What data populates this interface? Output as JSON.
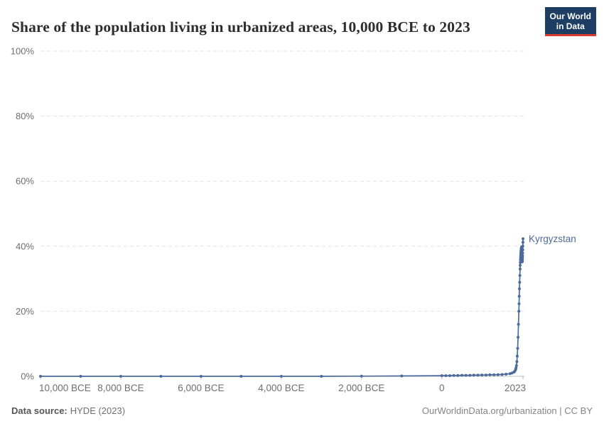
{
  "header": {
    "title": "Share of the population living in urbanized areas, 10,000 BCE to 2023",
    "logo": {
      "line1": "Our World",
      "line2": "in Data",
      "bg_color": "#1d3d63",
      "accent_color": "#d93a2d"
    }
  },
  "chart_data": {
    "type": "line",
    "title": "Share of the population living in urbanized areas, 10,000 BCE to 2023",
    "entity": "Kyrgyzstan",
    "line_color": "#4c6a9c",
    "xlim": [
      -10000,
      2023
    ],
    "ylim": [
      0,
      100
    ],
    "grid": "dashed horizontal",
    "legend_position": "end-of-line label",
    "colors": {
      "grid": "#e2e2e2",
      "axis": "#bdbdbd",
      "tick_label": "#6e6e6e"
    },
    "y_ticks": [
      {
        "label": "0%",
        "value": 0
      },
      {
        "label": "20%",
        "value": 20
      },
      {
        "label": "40%",
        "value": 40
      },
      {
        "label": "60%",
        "value": 60
      },
      {
        "label": "80%",
        "value": 80
      },
      {
        "label": "100%",
        "value": 100
      }
    ],
    "x_ticks": [
      {
        "label": "10,000 BCE",
        "year": -10000
      },
      {
        "label": "8,000 BCE",
        "year": -8000
      },
      {
        "label": "6,000 BCE",
        "year": -6000
      },
      {
        "label": "4,000 BCE",
        "year": -4000
      },
      {
        "label": "2,000 BCE",
        "year": -2000
      },
      {
        "label": "0",
        "year": 0
      },
      {
        "label": "2023",
        "year": 2023
      }
    ],
    "points": [
      [
        -10000,
        0
      ],
      [
        -9000,
        0
      ],
      [
        -8000,
        0
      ],
      [
        -7000,
        0
      ],
      [
        -6000,
        0
      ],
      [
        -5000,
        0
      ],
      [
        -4000,
        0
      ],
      [
        -3000,
        0
      ],
      [
        -2000,
        0.05
      ],
      [
        -1000,
        0.1
      ],
      [
        0,
        0.2
      ],
      [
        100,
        0.2
      ],
      [
        200,
        0.2
      ],
      [
        300,
        0.25
      ],
      [
        400,
        0.25
      ],
      [
        500,
        0.3
      ],
      [
        600,
        0.3
      ],
      [
        700,
        0.3
      ],
      [
        800,
        0.35
      ],
      [
        900,
        0.35
      ],
      [
        1000,
        0.4
      ],
      [
        1100,
        0.4
      ],
      [
        1200,
        0.45
      ],
      [
        1300,
        0.45
      ],
      [
        1400,
        0.5
      ],
      [
        1500,
        0.55
      ],
      [
        1600,
        0.65
      ],
      [
        1700,
        0.8
      ],
      [
        1750,
        1
      ],
      [
        1800,
        1.3
      ],
      [
        1820,
        1.6
      ],
      [
        1840,
        2.1
      ],
      [
        1850,
        2.6
      ],
      [
        1860,
        3.3
      ],
      [
        1870,
        4.5
      ],
      [
        1880,
        6.2
      ],
      [
        1890,
        8.6
      ],
      [
        1900,
        12
      ],
      [
        1910,
        16
      ],
      [
        1920,
        20
      ],
      [
        1925,
        22.3
      ],
      [
        1930,
        24.6
      ],
      [
        1935,
        26.9
      ],
      [
        1940,
        28.9
      ],
      [
        1945,
        31
      ],
      [
        1950,
        33
      ],
      [
        1953,
        34.1
      ],
      [
        1956,
        35
      ],
      [
        1959,
        35.8
      ],
      [
        1962,
        36.4
      ],
      [
        1965,
        37
      ],
      [
        1968,
        37.6
      ],
      [
        1971,
        38.1
      ],
      [
        1974,
        38.5
      ],
      [
        1977,
        38.9
      ],
      [
        1980,
        39.2
      ],
      [
        1983,
        39.4
      ],
      [
        1986,
        39.6
      ],
      [
        1989,
        39.8
      ],
      [
        1991,
        39.2
      ],
      [
        1993,
        38.3
      ],
      [
        1995,
        37.4
      ],
      [
        1997,
        36.6
      ],
      [
        1999,
        36
      ],
      [
        2001,
        35.5
      ],
      [
        2003,
        35.2
      ],
      [
        2005,
        35.3
      ],
      [
        2007,
        35.6
      ],
      [
        2009,
        36
      ],
      [
        2011,
        36.5
      ],
      [
        2013,
        37.1
      ],
      [
        2015,
        37.9
      ],
      [
        2017,
        38.9
      ],
      [
        2019,
        40
      ],
      [
        2021,
        41.2
      ],
      [
        2023,
        42.3
      ]
    ]
  },
  "footer": {
    "datasource_label": "Data source:",
    "datasource_value": "HYDE (2023)",
    "attribution": "OurWorldinData.org/urbanization | CC BY"
  }
}
